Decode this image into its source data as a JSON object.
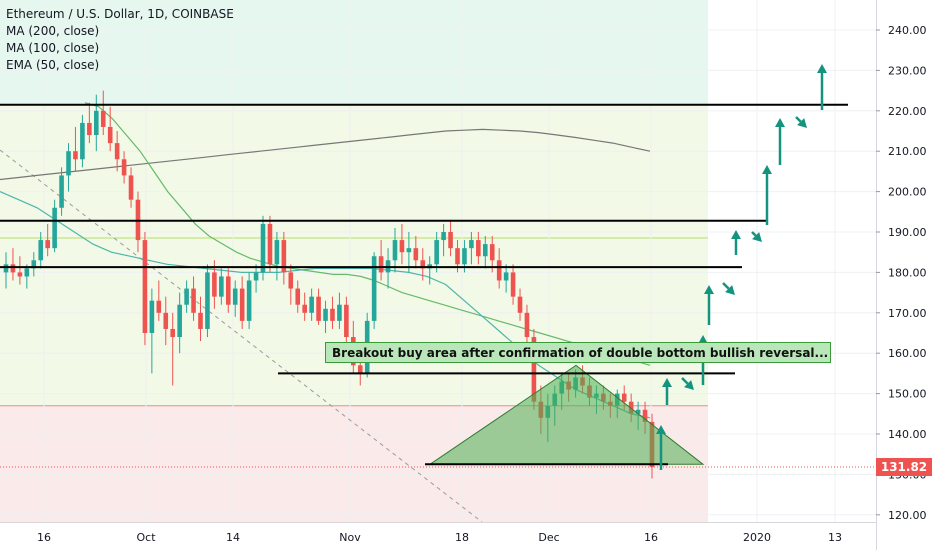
{
  "header": {
    "symbol_line": "Ethereum / U.S. Dollar, 1D, COINBASE",
    "indicators": [
      "MA (200, close)",
      "MA (100, close)",
      "EMA (50, close)"
    ]
  },
  "annotation": {
    "text": "Breakout buy area after confirmation of double bottom bullish reversal..."
  },
  "last_price": {
    "label": "131.82",
    "value": 131.82,
    "color": "#ef5350"
  },
  "colors": {
    "up": "#26a69a",
    "down": "#ef5350",
    "arrow": "#14947e",
    "level": "#000000"
  },
  "chart_data": {
    "type": "candlestick",
    "title": "Ethereum / U.S. Dollar, 1D, COINBASE",
    "ylim": [
      117,
      247
    ],
    "yticks": [
      "240.00",
      "230.00",
      "220.00",
      "210.00",
      "200.00",
      "190.00",
      "180.00",
      "170.00",
      "160.00",
      "150.00",
      "140.00",
      "130.00",
      "120.00"
    ],
    "xticks": [
      "16",
      "Oct",
      "14",
      "Nov",
      "18",
      "Dec",
      "16",
      "2020",
      "13"
    ],
    "ohlc": [
      [
        180,
        185,
        176,
        182
      ],
      [
        182,
        186,
        178,
        180
      ],
      [
        180,
        184,
        177,
        179
      ],
      [
        179,
        182,
        176,
        181
      ],
      [
        181,
        185,
        179,
        183
      ],
      [
        183,
        190,
        181,
        188
      ],
      [
        188,
        192,
        184,
        186
      ],
      [
        186,
        198,
        185,
        196
      ],
      [
        196,
        206,
        194,
        204
      ],
      [
        204,
        212,
        200,
        210
      ],
      [
        210,
        216,
        205,
        208
      ],
      [
        208,
        219,
        206,
        217
      ],
      [
        217,
        222,
        212,
        214
      ],
      [
        214,
        224,
        210,
        220
      ],
      [
        220,
        225,
        214,
        216
      ],
      [
        216,
        221,
        210,
        212
      ],
      [
        212,
        215,
        205,
        208
      ],
      [
        208,
        210,
        202,
        204
      ],
      [
        204,
        206,
        196,
        198
      ],
      [
        198,
        200,
        185,
        188
      ],
      [
        188,
        190,
        162,
        165
      ],
      [
        165,
        176,
        155,
        173
      ],
      [
        173,
        178,
        168,
        170
      ],
      [
        170,
        174,
        162,
        166
      ],
      [
        166,
        170,
        152,
        164
      ],
      [
        164,
        175,
        160,
        172
      ],
      [
        172,
        178,
        170,
        176
      ],
      [
        176,
        179,
        168,
        170
      ],
      [
        170,
        174,
        163,
        166
      ],
      [
        166,
        182,
        164,
        180
      ],
      [
        180,
        183,
        171,
        174
      ],
      [
        174,
        181,
        172,
        179
      ],
      [
        179,
        181,
        170,
        172
      ],
      [
        172,
        178,
        169,
        176
      ],
      [
        176,
        179,
        166,
        168
      ],
      [
        168,
        180,
        166,
        178
      ],
      [
        178,
        182,
        175,
        180
      ],
      [
        180,
        194,
        178,
        192
      ],
      [
        192,
        194,
        180,
        182
      ],
      [
        182,
        190,
        178,
        188
      ],
      [
        188,
        190,
        177,
        180
      ],
      [
        180,
        182,
        172,
        176
      ],
      [
        176,
        178,
        170,
        172
      ],
      [
        172,
        175,
        168,
        170
      ],
      [
        170,
        176,
        168,
        174
      ],
      [
        174,
        176,
        167,
        168
      ],
      [
        168,
        173,
        165,
        171
      ],
      [
        171,
        174,
        166,
        168
      ],
      [
        168,
        175,
        166,
        172
      ],
      [
        172,
        174,
        162,
        164
      ],
      [
        164,
        168,
        155,
        157
      ],
      [
        157,
        160,
        152,
        155
      ],
      [
        155,
        170,
        154,
        168
      ],
      [
        168,
        185,
        166,
        184
      ],
      [
        184,
        188,
        178,
        180
      ],
      [
        180,
        186,
        176,
        183
      ],
      [
        183,
        191,
        180,
        188
      ],
      [
        188,
        192,
        182,
        185
      ],
      [
        185,
        190,
        180,
        186
      ],
      [
        186,
        189,
        181,
        183
      ],
      [
        183,
        186,
        178,
        181
      ],
      [
        181,
        184,
        177,
        182
      ],
      [
        182,
        190,
        180,
        188
      ],
      [
        188,
        192,
        184,
        190
      ],
      [
        190,
        193,
        184,
        186
      ],
      [
        186,
        188,
        180,
        182
      ],
      [
        182,
        188,
        180,
        186
      ],
      [
        186,
        190,
        182,
        188
      ],
      [
        188,
        190,
        182,
        184
      ],
      [
        184,
        189,
        181,
        187
      ],
      [
        187,
        189,
        180,
        183
      ],
      [
        183,
        186,
        176,
        178
      ],
      [
        178,
        182,
        175,
        180
      ],
      [
        180,
        182,
        172,
        174
      ],
      [
        174,
        176,
        168,
        170
      ],
      [
        170,
        172,
        162,
        164
      ],
      [
        164,
        166,
        146,
        148
      ],
      [
        148,
        152,
        140,
        144
      ],
      [
        144,
        150,
        138,
        147
      ],
      [
        147,
        152,
        142,
        150
      ],
      [
        150,
        155,
        146,
        153
      ],
      [
        153,
        155,
        148,
        151
      ],
      [
        151,
        156,
        149,
        154
      ],
      [
        154,
        157,
        150,
        152
      ],
      [
        152,
        154,
        147,
        149
      ],
      [
        149,
        152,
        145,
        150
      ],
      [
        150,
        152,
        146,
        148
      ],
      [
        148,
        150,
        144,
        147
      ],
      [
        147,
        151,
        144,
        150
      ],
      [
        150,
        152,
        146,
        148
      ],
      [
        148,
        150,
        143,
        145
      ],
      [
        145,
        148,
        141,
        146
      ],
      [
        146,
        148,
        140,
        143
      ],
      [
        143,
        145,
        129,
        131.82
      ]
    ],
    "ma200": [
      203,
      203.5,
      204,
      204.5,
      205,
      205.5,
      206,
      206.5,
      207,
      207.5,
      208,
      208.5,
      209,
      209.5,
      210,
      210.5,
      211,
      211.5,
      212,
      212.5,
      213,
      213.5,
      214,
      214.5,
      215,
      215.2,
      215.4,
      215.2,
      215,
      214.6,
      214,
      213.4,
      212.7,
      212,
      211,
      210
    ],
    "ma100": [
      222,
      221,
      218,
      214,
      210,
      205,
      200,
      196,
      192,
      189,
      187,
      185,
      183.5,
      182.5,
      181.5,
      181,
      180.5,
      180,
      179.5,
      179.5,
      179,
      178,
      176.5,
      175,
      174,
      173,
      172,
      171,
      170,
      169,
      168,
      167,
      166,
      165,
      164,
      163,
      162,
      161,
      160,
      159,
      158,
      157
    ],
    "ema50": [
      200,
      198,
      196,
      193,
      190,
      187,
      185,
      184,
      183,
      182,
      181.5,
      181,
      180.5,
      180,
      180,
      180,
      180.5,
      181,
      181,
      181,
      181,
      180.5,
      180,
      179,
      177,
      173,
      169,
      165,
      161,
      157,
      154,
      151,
      149,
      147,
      145,
      144
    ],
    "horizontal_levels": [
      221.5,
      192.8,
      181.3,
      155,
      132.5
    ],
    "triangle": {
      "base_left": 132.5,
      "apex": 157,
      "base_right": 132.5
    },
    "projected_arrows": "up-down zigzag projection toward 230"
  }
}
